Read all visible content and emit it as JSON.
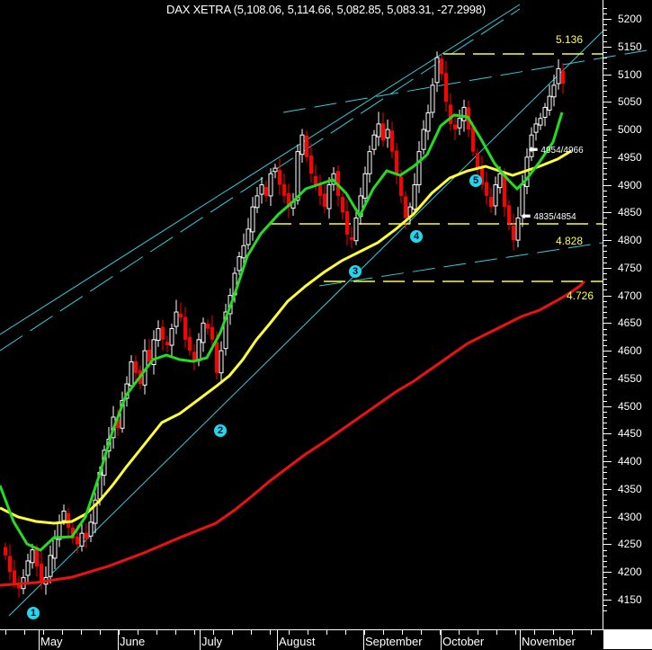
{
  "title": "DAX XETRA (5,108.06, 5,114.66, 5,082.85, 5,083.31, -27.2998)",
  "colors": {
    "background": "#000000",
    "up_candle": "#ffffff",
    "down_candle": "#ff0000",
    "ma_fast": "#22dd22",
    "ma_mid": "#ffff33",
    "ma_slow": "#ee1111",
    "trendline": "#33ccdd",
    "level": "#ffff33"
  },
  "y_axis": {
    "ticks": [
      "5200",
      "5150",
      "5100",
      "5050",
      "5000",
      "4950",
      "4900",
      "4850",
      "4800",
      "4750",
      "4700",
      "4650",
      "4600",
      "4550",
      "4500",
      "4450",
      "4400",
      "4350",
      "4300",
      "4250",
      "4200",
      "4150"
    ]
  },
  "x_axis": {
    "months": [
      {
        "label": "May",
        "x": 33
      },
      {
        "label": "June",
        "x": 96
      },
      {
        "label": "July",
        "x": 161
      },
      {
        "label": "August",
        "x": 223
      },
      {
        "label": "September",
        "x": 292
      },
      {
        "label": "October",
        "x": 356
      },
      {
        "label": "November",
        "x": 418
      }
    ]
  },
  "annotations": {
    "level_5136": "5.136",
    "level_4828": "4.828",
    "level_4726": "4.726",
    "arrow_upper": "4954/4966",
    "arrow_lower": "4835/4854",
    "markers": [
      "1",
      "2",
      "3",
      "4",
      "5"
    ]
  },
  "chart_data": {
    "type": "candlestick",
    "title": "DAX XETRA (5,108.06, 5,114.66, 5,082.85, 5,083.31, -27.2998)",
    "last_bar": {
      "open": 5108.06,
      "high": 5114.66,
      "low": 5082.85,
      "close": 5083.31,
      "change": -27.2998
    },
    "xlabel": "",
    "ylabel": "",
    "ylim": [
      4100,
      5230
    ],
    "x_categories": [
      "May",
      "June",
      "July",
      "August",
      "September",
      "October",
      "November"
    ],
    "close_series_approx": [
      4230,
      4200,
      4180,
      4170,
      4190,
      4220,
      4240,
      4210,
      4180,
      4190,
      4230,
      4260,
      4290,
      4310,
      4280,
      4260,
      4250,
      4270,
      4260,
      4290,
      4330,
      4380,
      4420,
      4440,
      4480,
      4460,
      4510,
      4540,
      4580,
      4560,
      4540,
      4600,
      4580,
      4620,
      4640,
      4620,
      4610,
      4640,
      4670,
      4660,
      4620,
      4600,
      4580,
      4620,
      4650,
      4640,
      4620,
      4560,
      4600,
      4670,
      4700,
      4740,
      4770,
      4790,
      4820,
      4860,
      4880,
      4900,
      4880,
      4920,
      4930,
      4900,
      4880,
      4860,
      4870,
      4960,
      4990,
      4950,
      4920,
      4900,
      4880,
      4860,
      4900,
      4920,
      4880,
      4850,
      4810,
      4800,
      4840,
      4880,
      4920,
      4960,
      4990,
      5010,
      4980,
      5000,
      4960,
      4920,
      4880,
      4840,
      4860,
      4900,
      4960,
      5000,
      5030,
      5080,
      5130,
      5100,
      5050,
      5010,
      5000,
      5020,
      5040,
      5000,
      4960,
      4930,
      4900,
      4880,
      4860,
      4900,
      4920,
      4860,
      4830,
      4800,
      4840,
      4900,
      4950,
      4990,
      5010,
      5020,
      5040,
      5060,
      5080,
      5110,
      5083
    ],
    "moving_averages": [
      {
        "name": "fast MA (green)",
        "color": "#22dd22"
      },
      {
        "name": "mid MA (yellow)",
        "color": "#ffff33"
      },
      {
        "name": "slow MA (red)",
        "color": "#ee1111",
        "end_value": 4726
      }
    ],
    "horizontal_levels": [
      {
        "value": 5136,
        "label": "5.136",
        "style": "dashed"
      },
      {
        "value": 4828,
        "label": "4.828",
        "style": "dashed"
      },
      {
        "value": 4726,
        "label": "4.726",
        "style": "dashed"
      }
    ],
    "arrow_notes": [
      {
        "label": "4954/4966",
        "value": 4960
      },
      {
        "label": "4835/4854",
        "value": 4845
      }
    ],
    "wave_markers": [
      {
        "label": "1",
        "x_month": "May (start)",
        "price": 4150
      },
      {
        "label": "2",
        "x_month": "July",
        "price": 4465
      },
      {
        "label": "3",
        "x_month": "August",
        "price": 4700
      },
      {
        "label": "4",
        "x_month": "September",
        "price": 4800
      },
      {
        "label": "5",
        "x_month": "October",
        "price": 4900
      }
    ],
    "grid": false,
    "legend": null
  }
}
